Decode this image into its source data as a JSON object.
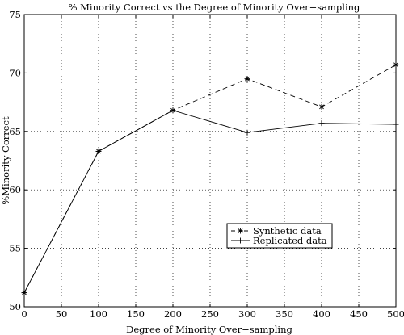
{
  "chart_data": {
    "type": "line",
    "title": "% Minority Correct vs the Degree of Minority Over−sampling",
    "xlabel": "Degree of Minority Over−sampling",
    "ylabel": "%Minority Correct",
    "xlim": [
      0,
      500
    ],
    "ylim": [
      50,
      75
    ],
    "xticks": [
      0,
      50,
      100,
      150,
      200,
      250,
      300,
      350,
      400,
      450,
      500
    ],
    "yticks": [
      50,
      55,
      60,
      65,
      70,
      75
    ],
    "grid": true,
    "legend_position": "lower-right",
    "series": [
      {
        "name": "Synthetic data",
        "linestyle": "dashed",
        "marker": "asterisk",
        "x": [
          0,
          100,
          200,
          300,
          400,
          500
        ],
        "y": [
          51.2,
          63.3,
          66.8,
          69.5,
          67.1,
          70.7
        ]
      },
      {
        "name": "Replicated data",
        "linestyle": "solid",
        "marker": "plus",
        "x": [
          0,
          100,
          200,
          300,
          400,
          500
        ],
        "y": [
          51.2,
          63.3,
          66.8,
          64.9,
          65.7,
          65.6
        ]
      }
    ]
  }
}
